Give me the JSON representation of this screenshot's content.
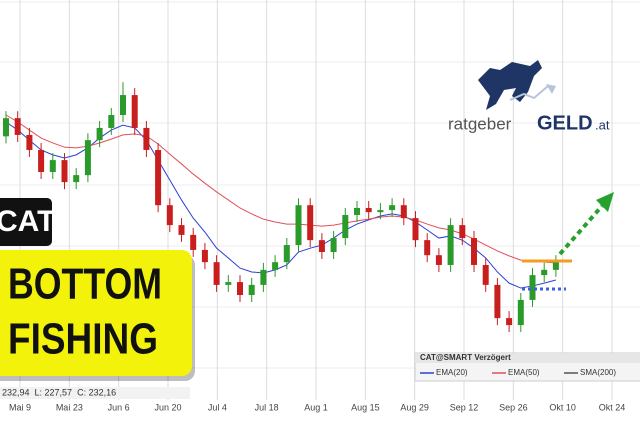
{
  "chart_data": {
    "type": "candlestick",
    "ylim": [
      145,
      258
    ],
    "x_labels": [
      "Mai 9",
      "Mai 23",
      "Jun 6",
      "Jun 20",
      "Jul 4",
      "Jul 18",
      "Aug 1",
      "Aug 15",
      "Aug 29",
      "Sep 12",
      "Sep 26",
      "Okt 10",
      "Okt 24"
    ],
    "grid": true,
    "up_color": "#2a9a2a",
    "down_color": "#c81e1e",
    "open": [
      219.0,
      224.2,
      219.4,
      215.1,
      208.8,
      212.2,
      205.9,
      207.9,
      217.9,
      221.4,
      225.1,
      230.8,
      221.4,
      215.1,
      199.3,
      193.6,
      190.8,
      186.5,
      183.0,
      176.5,
      177.3,
      173.6,
      176.5,
      180.8,
      183.0,
      187.9,
      199.3,
      189.3,
      185.9,
      189.9,
      196.5,
      198.5,
      197.3,
      197.9,
      199.3,
      195.6,
      189.3,
      185.0,
      182.2,
      193.6,
      189.9,
      182.2,
      176.5,
      167.0,
      165.0,
      172.2,
      179.3,
      180.8
    ],
    "high": [
      226.2,
      226.2,
      221.4,
      217.1,
      214.2,
      214.2,
      209.9,
      219.9,
      223.4,
      227.1,
      234.5,
      232.8,
      223.4,
      217.1,
      201.3,
      195.6,
      192.8,
      188.5,
      185.0,
      179.3,
      179.3,
      178.5,
      182.8,
      185.0,
      189.9,
      201.3,
      201.3,
      191.3,
      191.9,
      198.5,
      200.5,
      200.5,
      199.9,
      201.3,
      201.3,
      197.6,
      191.3,
      187.0,
      195.6,
      195.6,
      191.9,
      184.2,
      178.5,
      169.0,
      174.2,
      181.3,
      182.8,
      185.0
    ],
    "low": [
      217.0,
      217.4,
      213.1,
      206.8,
      206.8,
      203.9,
      203.9,
      205.9,
      215.9,
      219.4,
      223.1,
      219.4,
      213.1,
      197.3,
      191.6,
      188.8,
      184.5,
      181.0,
      174.5,
      174.5,
      171.6,
      171.6,
      174.5,
      178.8,
      181.0,
      185.9,
      187.3,
      183.9,
      183.9,
      187.9,
      194.5,
      195.3,
      195.3,
      195.9,
      193.6,
      187.3,
      183.0,
      180.2,
      180.2,
      187.9,
      180.2,
      174.5,
      165.0,
      163.0,
      163.0,
      170.2,
      177.3,
      178.8
    ],
    "close": [
      224.2,
      219.4,
      215.1,
      208.8,
      212.2,
      205.9,
      207.9,
      217.9,
      221.4,
      225.1,
      230.8,
      221.4,
      215.1,
      199.3,
      193.6,
      190.8,
      186.5,
      183.0,
      176.5,
      177.3,
      173.6,
      176.5,
      180.8,
      183.0,
      187.9,
      199.3,
      189.3,
      185.9,
      189.9,
      196.5,
      198.5,
      197.3,
      197.9,
      199.3,
      195.6,
      189.3,
      185.0,
      182.2,
      193.6,
      189.9,
      182.2,
      176.5,
      167.0,
      165.0,
      172.2,
      179.3,
      180.8,
      183.0
    ],
    "series": [
      {
        "name": "EMA(20)",
        "color": "#2b3fd6",
        "values": [
          223.1,
          220.8,
          217.9,
          215.1,
          213.7,
          212.8,
          213.7,
          215.7,
          218.5,
          220.8,
          222.2,
          221.4,
          217.9,
          212.2,
          206.5,
          200.8,
          195.6,
          191.6,
          187.0,
          184.2,
          181.3,
          180.2,
          179.9,
          180.8,
          182.2,
          185.9,
          187.0,
          187.9,
          189.9,
          192.2,
          193.9,
          195.1,
          196.2,
          196.8,
          196.2,
          194.5,
          192.2,
          189.9,
          190.5,
          189.3,
          187.0,
          184.2,
          180.2,
          177.0,
          175.6,
          176.2,
          177.0,
          177.9
        ]
      },
      {
        "name": "EMA(50)",
        "color": "#e0505a",
        "values": [
          225.1,
          223.1,
          220.8,
          218.5,
          217.1,
          215.9,
          215.7,
          216.2,
          217.1,
          218.2,
          219.4,
          219.7,
          219.1,
          216.8,
          213.9,
          211.1,
          208.2,
          205.6,
          203.1,
          200.8,
          198.5,
          196.8,
          195.3,
          194.5,
          193.9,
          193.9,
          193.6,
          193.3,
          193.6,
          194.2,
          194.8,
          195.3,
          195.9,
          196.2,
          195.9,
          195.1,
          193.9,
          192.8,
          192.2,
          191.1,
          189.6,
          187.9,
          186.2,
          184.8,
          183.6,
          183.3,
          183.0,
          182.8
        ]
      }
    ],
    "legend_title": "CAT@SMART Verzögert",
    "legend_extra": {
      "name": "SMA(200)",
      "color": "#555555"
    },
    "info_line": "232,94  L: 227,57  C: 232,16"
  },
  "badges": {
    "ticker": "CAT",
    "line1": "BOTTOM",
    "line2": "FISHING"
  },
  "logo": {
    "word1": "ratgeber",
    "word2": "GELD",
    "suffix": ".at"
  }
}
